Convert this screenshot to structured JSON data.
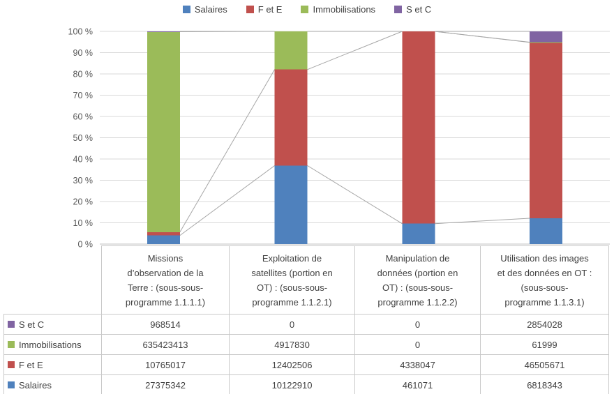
{
  "colors": {
    "salaires": "#4F81BD",
    "f_et_e": "#C0504D",
    "immobilisations": "#9BBB59",
    "s_et_c": "#8064A2",
    "gridline": "#D9D9D9",
    "axis_line": "#BFBFBF",
    "series_line": "#A6A6A6",
    "axis_text": "#595959",
    "body_text": "#404040",
    "table_border": "#C9C9C9"
  },
  "legend": {
    "items": [
      {
        "label": "Salaires",
        "color": "#4F81BD"
      },
      {
        "label": "F et E",
        "color": "#C0504D"
      },
      {
        "label": "Immobilisations",
        "color": "#9BBB59"
      },
      {
        "label": "S et C",
        "color": "#8064A2"
      }
    ]
  },
  "chart_data": {
    "type": "bar",
    "subtype": "stacked-100-percent",
    "title": "",
    "xlabel": "",
    "ylabel": "",
    "grid": true,
    "legend_position": "top",
    "series_lines": true,
    "categories": [
      "Missions\nd’observation de la\nTerre : (sous-sous-\nprogramme 1.1.1.1)",
      "Exploitation de\nsatellites (portion en\nOT) : (sous-sous-\nprogramme 1.1.2.1)",
      "Manipulation de\ndonnées (portion en\nOT) : (sous-sous-\nprogramme 1.1.2.2)",
      "Utilisation des images\net des données en OT :\n(sous-sous-\nprogramme 1.1.3.1)"
    ],
    "series": [
      {
        "name": "Salaires",
        "color": "#4F81BD",
        "values": [
          27375342,
          10122910,
          461071,
          6818343
        ]
      },
      {
        "name": "F et E",
        "color": "#C0504D",
        "values": [
          10765017,
          12402506,
          4338047,
          46505671
        ]
      },
      {
        "name": "Immobilisations",
        "color": "#9BBB59",
        "values": [
          635423413,
          4917830,
          0,
          61999
        ]
      },
      {
        "name": "S et C",
        "color": "#8064A2",
        "values": [
          968514,
          0,
          0,
          2854028
        ]
      }
    ],
    "stack_order_bottom_to_top": [
      "Salaires",
      "F et E",
      "Immobilisations",
      "S et C"
    ],
    "y_axis": {
      "min": 0,
      "max": 100,
      "step": 10,
      "tick_labels": [
        "0 %",
        "10 %",
        "20 %",
        "30 %",
        "40 %",
        "50 %",
        "60 %",
        "70 %",
        "80 %",
        "90 %",
        "100 %"
      ]
    }
  },
  "table": {
    "rows": [
      {
        "label": "S et C",
        "key_color": "#8064A2",
        "values": [
          "968514",
          "0",
          "0",
          "2854028"
        ]
      },
      {
        "label": "Immobilisations",
        "key_color": "#9BBB59",
        "values": [
          "635423413",
          "4917830",
          "0",
          "61999"
        ]
      },
      {
        "label": "F et E",
        "key_color": "#C0504D",
        "values": [
          "10765017",
          "12402506",
          "4338047",
          "46505671"
        ]
      },
      {
        "label": "Salaires",
        "key_color": "#4F81BD",
        "values": [
          "27375342",
          "10122910",
          "461071",
          "6818343"
        ]
      }
    ]
  }
}
